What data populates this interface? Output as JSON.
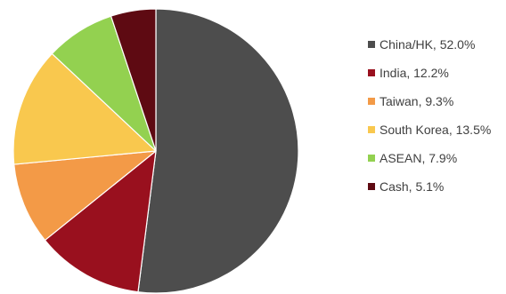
{
  "chart_data": {
    "type": "pie",
    "title": "",
    "start_angle_deg": 0,
    "direction": "clockwise",
    "legend_position": "right",
    "slices": [
      {
        "label": "China/HK, 52.0%",
        "category": "China/HK",
        "value": 52.0,
        "color": "#4d4d4d"
      },
      {
        "label": "India, 12.2%",
        "category": "India",
        "value": 12.2,
        "color": "#99101e"
      },
      {
        "label": "Taiwan, 9.3%",
        "category": "Taiwan",
        "value": 9.3,
        "color": "#f39a47"
      },
      {
        "label": "South Korea, 13.5%",
        "category": "South Korea",
        "value": 13.5,
        "color": "#f9c84e"
      },
      {
        "label": "ASEAN, 7.9%",
        "category": "ASEAN",
        "value": 7.9,
        "color": "#93d150"
      },
      {
        "label": "Cash, 5.1%",
        "category": "Cash",
        "value": 5.1,
        "color": "#5e0a12"
      }
    ]
  }
}
